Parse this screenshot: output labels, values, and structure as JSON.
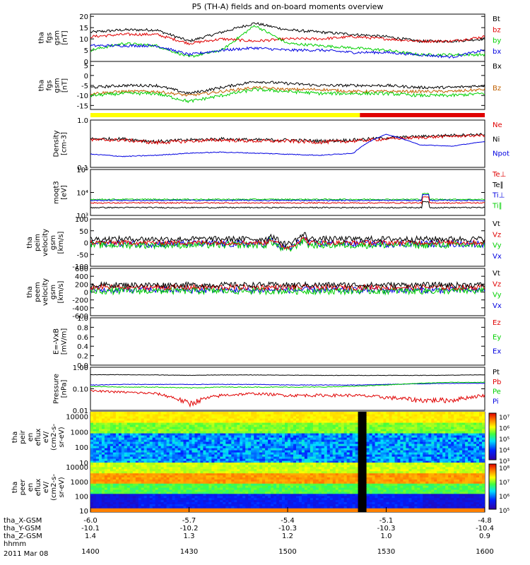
{
  "title": "P5 (TH-A) fields and on-board moments overview",
  "date_label": "2011 Mar 08",
  "colors": {
    "black": "#000000",
    "red": "#e00000",
    "green": "#00d000",
    "blue": "#0000e0",
    "yellow": "#ffff00",
    "orange": "#c06000"
  },
  "x_axis": {
    "ticks": [
      "1400",
      "1430",
      "1500",
      "1530",
      "1600"
    ],
    "rows": [
      {
        "label": "tha_X-GSM",
        "values": [
          "-6.0",
          "-5.7",
          "-5.4",
          "-5.1",
          "-4.8"
        ]
      },
      {
        "label": "tha_Y-GSM",
        "values": [
          "-10.1",
          "-10.2",
          "-10.3",
          "-10.3",
          "-10.4"
        ]
      },
      {
        "label": "tha_Z-GSM",
        "values": [
          "1.4",
          "1.3",
          "1.2",
          "1.0",
          "0.9"
        ]
      },
      {
        "label": "hhmm",
        "values": [
          "",
          "",
          "",
          "",
          ""
        ]
      }
    ]
  },
  "panels": [
    {
      "id": "fgs-total",
      "ylabel": [
        "tha",
        "fgs",
        "gsm",
        "[nT]"
      ],
      "yticks": [
        "20",
        "15",
        "10",
        "5",
        "0"
      ],
      "ylim": [
        0,
        21
      ],
      "legend": [
        {
          "text": "Bt",
          "color": "#000000"
        },
        {
          "text": "bz",
          "color": "#e00000"
        },
        {
          "text": "by",
          "color": "#00d000"
        },
        {
          "text": "bx",
          "color": "#0000e0"
        }
      ]
    },
    {
      "id": "fgs-xy",
      "ylabel": [
        "tha",
        "fgs",
        "gsm",
        "[nT]"
      ],
      "yticks": [
        "5",
        "0",
        "-5",
        "-10",
        "-15"
      ],
      "ylim": [
        -17,
        7
      ],
      "legend": [
        {
          "text": "Bx",
          "color": "#000000"
        },
        {
          "text": "Bz",
          "color": "#c06000"
        }
      ]
    },
    {
      "id": "density",
      "ylabel": [
        "Density",
        "[cm-3]"
      ],
      "yticks": [
        "1.0",
        "0.1"
      ],
      "ylim": [
        0.1,
        1.0
      ],
      "scale": "log",
      "legend": [
        {
          "text": "Ne",
          "color": "#e00000"
        },
        {
          "text": "Ni",
          "color": "#000000"
        },
        {
          "text": "Npot",
          "color": "#0000e0"
        }
      ]
    },
    {
      "id": "temperature",
      "ylabel": [
        "moqt3",
        "[eV]"
      ],
      "yticks": [
        "10⁵",
        "10⁴",
        "10³"
      ],
      "ylim": [
        1000,
        100000
      ],
      "scale": "log",
      "legend": [
        {
          "text": "Te⊥",
          "color": "#e00000"
        },
        {
          "text": "Te∥",
          "color": "#000000"
        },
        {
          "text": "Ti⊥",
          "color": "#0000e0"
        },
        {
          "text": "Ti∥",
          "color": "#00d000"
        }
      ]
    },
    {
      "id": "peim-velocity",
      "ylabel": [
        "tha",
        "peim",
        "velocity",
        "gsm",
        "[km/s]"
      ],
      "yticks": [
        "100",
        "50",
        "0",
        "-50",
        "-100"
      ],
      "ylim": [
        -100,
        100
      ],
      "legend": [
        {
          "text": "Vt",
          "color": "#000000"
        },
        {
          "text": "Vz",
          "color": "#e00000"
        },
        {
          "text": "Vy",
          "color": "#00d000"
        },
        {
          "text": "Vx",
          "color": "#0000e0"
        }
      ]
    },
    {
      "id": "peem-velocity",
      "ylabel": [
        "tha",
        "peem",
        "velocity",
        "gsm",
        "[km/s]"
      ],
      "yticks": [
        "600",
        "400",
        "200",
        "0",
        "-200",
        "-400",
        "-600"
      ],
      "ylim": [
        -600,
        600
      ],
      "legend": [
        {
          "text": "Vt",
          "color": "#000000"
        },
        {
          "text": "Vz",
          "color": "#e00000"
        },
        {
          "text": "Vy",
          "color": "#00d000"
        },
        {
          "text": "Vx",
          "color": "#0000e0"
        }
      ]
    },
    {
      "id": "efield",
      "ylabel": [
        "E=-VxB",
        "[mV/m]"
      ],
      "yticks": [
        "1.0",
        "0.8",
        "0.6",
        "0.4",
        "0.2",
        "0.0"
      ],
      "ylim": [
        0,
        1
      ],
      "legend": [
        {
          "text": "Ez",
          "color": "#e00000"
        },
        {
          "text": "Ey",
          "color": "#00d000"
        },
        {
          "text": "Ex",
          "color": "#0000e0"
        }
      ]
    },
    {
      "id": "pressure",
      "ylabel": [
        "Pressure",
        "[nPa]"
      ],
      "yticks": [
        "1.00",
        "0.10",
        "0.01"
      ],
      "ylim": [
        0.01,
        1.0
      ],
      "scale": "log",
      "legend": [
        {
          "text": "Pt",
          "color": "#000000"
        },
        {
          "text": "Pb",
          "color": "#e00000"
        },
        {
          "text": "Pe",
          "color": "#00d000"
        },
        {
          "text": "Pi",
          "color": "#0000e0"
        }
      ]
    },
    {
      "id": "peir-spectrogram",
      "ylabel": [
        "tha",
        "peir",
        "en",
        "eflux",
        "eV/",
        "(cm2-s-",
        "sr-eV)"
      ],
      "yticks": [
        "10000",
        "1000",
        "100",
        "10"
      ],
      "ylim": [
        10,
        20000
      ],
      "scale": "log",
      "colorbar": [
        "10⁷",
        "10⁶",
        "10⁵",
        "10⁴",
        "10³"
      ]
    },
    {
      "id": "peer-spectrogram",
      "ylabel": [
        "tha",
        "peer",
        "en",
        "eflux",
        "eV/",
        "(cm2-s-",
        "sr-eV)"
      ],
      "yticks": [
        "10000",
        "1000",
        "100",
        "10"
      ],
      "ylim": [
        8,
        20000
      ],
      "scale": "log",
      "colorbar": [
        "10⁸",
        "10⁷",
        "10⁶",
        "10⁵"
      ]
    }
  ],
  "chart_data": {
    "type": "line",
    "x": [
      "1400",
      "1410",
      "1420",
      "1430",
      "1440",
      "1450",
      "1500",
      "1510",
      "1520",
      "1530",
      "1540",
      "1550",
      "1600"
    ],
    "series": [
      {
        "name": "Bt",
        "values": [
          13,
          14,
          14,
          9,
          13,
          17,
          14,
          13,
          12,
          11,
          9,
          9,
          10
        ]
      },
      {
        "name": "bz",
        "values": [
          11,
          12,
          12,
          8,
          10,
          9,
          10,
          10,
          11,
          10,
          9,
          9,
          11
        ]
      },
      {
        "name": "by",
        "values": [
          5,
          8,
          7,
          2,
          5,
          16,
          8,
          7,
          6,
          5,
          3,
          3,
          3
        ]
      },
      {
        "name": "bx",
        "values": [
          7,
          7,
          7,
          3,
          5,
          6,
          5,
          5,
          4,
          4,
          3,
          2,
          5
        ]
      },
      {
        "name": "Bx",
        "values": [
          -6,
          -5,
          -5,
          -9,
          -6,
          -3,
          -4,
          -5,
          -5,
          -5,
          -6,
          -6,
          -5
        ]
      },
      {
        "name": "Bz",
        "values": [
          -9,
          -8,
          -8,
          -10,
          -8,
          -6,
          -7,
          -7,
          -8,
          -8,
          -8,
          -8,
          -7
        ]
      },
      {
        "name": "Ni",
        "values": [
          0.4,
          0.4,
          0.35,
          0.38,
          0.4,
          0.38,
          0.38,
          0.36,
          0.38,
          0.42,
          0.45,
          0.48,
          0.5
        ]
      },
      {
        "name": "Npot",
        "values": [
          0.19,
          0.17,
          0.18,
          0.2,
          0.21,
          0.2,
          0.19,
          0.18,
          0.2,
          0.5,
          0.3,
          0.28,
          0.35
        ]
      },
      {
        "name": "Pt",
        "values": [
          0.45,
          0.45,
          0.44,
          0.42,
          0.44,
          0.44,
          0.43,
          0.42,
          0.42,
          0.42,
          0.42,
          0.43,
          0.45
        ]
      },
      {
        "name": "Pb",
        "values": [
          0.08,
          0.07,
          0.06,
          0.02,
          0.05,
          0.06,
          0.05,
          0.05,
          0.05,
          0.04,
          0.03,
          0.03,
          0.05
        ]
      },
      {
        "name": "Pi",
        "values": [
          0.15,
          0.16,
          0.16,
          0.16,
          0.16,
          0.16,
          0.15,
          0.15,
          0.15,
          0.16,
          0.17,
          0.18,
          0.18
        ]
      },
      {
        "name": "Pe",
        "values": [
          0.13,
          0.12,
          0.12,
          0.11,
          0.12,
          0.12,
          0.12,
          0.12,
          0.13,
          0.15,
          0.18,
          0.2,
          0.2
        ]
      }
    ],
    "mode_bar": [
      {
        "color": "yellow",
        "from": "1400",
        "to": "1522"
      },
      {
        "color": "red",
        "from": "1522",
        "to": "1600"
      }
    ]
  }
}
